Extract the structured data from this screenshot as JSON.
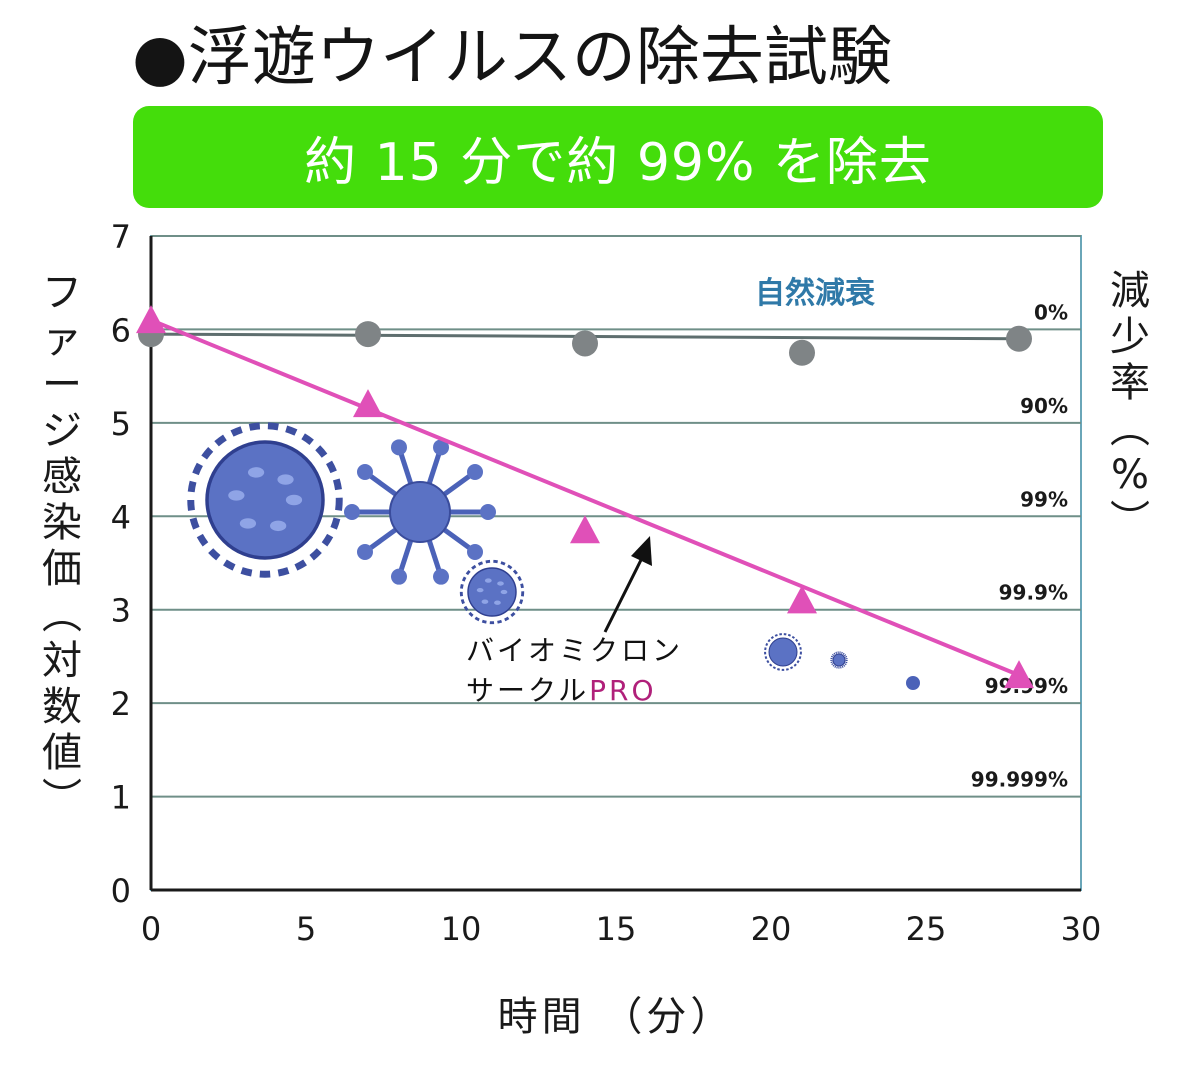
{
  "title": "●浮遊ウイルスの除去試験",
  "banner": "約 15 分で約 99% を除去",
  "annotation": {
    "line1": "バイオミクロン",
    "line2": "サークル",
    "line2_highlight": "PRO"
  },
  "chart_data": {
    "type": "line",
    "title": "",
    "xlabel": "時間 （分）",
    "ylabel": "ファージ感染価（対数値）",
    "y2label": "減少率（%）",
    "xlim": [
      0,
      30
    ],
    "ylim": [
      0,
      7
    ],
    "xticks": [
      0,
      5,
      10,
      15,
      20,
      25,
      30
    ],
    "yticks": [
      0,
      1,
      2,
      3,
      4,
      5,
      6,
      7
    ],
    "grid": true,
    "right_axis_ticks": [
      {
        "y": 6,
        "label": "0%"
      },
      {
        "y": 5,
        "label": "90%"
      },
      {
        "y": 4,
        "label": "99%"
      },
      {
        "y": 3,
        "label": "99.9%"
      },
      {
        "y": 2,
        "label": "99.99%"
      },
      {
        "y": 1,
        "label": "99.999%"
      }
    ],
    "series": [
      {
        "name": "自然減衰",
        "marker": "circle",
        "color": "#7f8486",
        "line_color": "#5e6e6e",
        "x": [
          0,
          7,
          14,
          21,
          28
        ],
        "y": [
          5.95,
          5.95,
          5.85,
          5.75,
          5.9
        ]
      },
      {
        "name": "バイオミクロンサークルPRO",
        "marker": "triangle",
        "color": "#e050b8",
        "x": [
          0,
          7,
          14,
          21,
          28
        ],
        "y": [
          6.1,
          5.2,
          3.85,
          3.1,
          2.3
        ]
      }
    ]
  }
}
